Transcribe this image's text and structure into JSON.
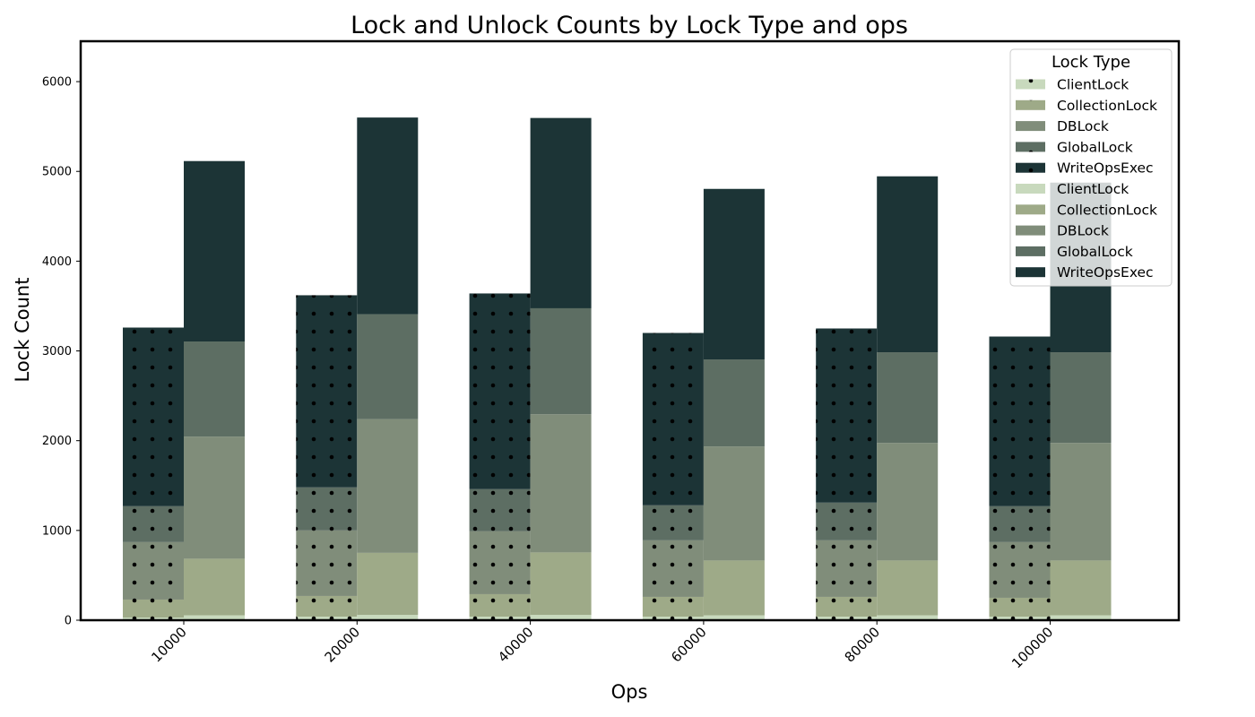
{
  "chart_data": {
    "type": "bar",
    "title": "Lock and Unlock Counts by Lock Type and ops",
    "xlabel": "Ops",
    "ylabel": "Lock Count",
    "categories": [
      "10000",
      "20000",
      "40000",
      "60000",
      "80000",
      "100000"
    ],
    "ylim": [
      0,
      6450
    ],
    "yticks": [
      0,
      1000,
      2000,
      3000,
      4000,
      5000,
      6000
    ],
    "grid": false,
    "legend_title": "Lock Type",
    "legend_position": "top-right",
    "lock_types": [
      "ClientLock",
      "CollectionLock",
      "DBLock",
      "GlobalLock",
      "WriteOpsExec"
    ],
    "colors": [
      "#c8d9bd",
      "#9eaa88",
      "#808d7a",
      "#5d6e63",
      "#1c3436"
    ],
    "groups": [
      {
        "pattern": "dots",
        "series": [
          {
            "name": "ClientLock",
            "values": [
              30,
              40,
              40,
              40,
              40,
              40
            ]
          },
          {
            "name": "CollectionLock",
            "values": [
              200,
              230,
              250,
              220,
              220,
              210
            ]
          },
          {
            "name": "DBLock",
            "values": [
              640,
              730,
              700,
              630,
              630,
              620
            ]
          },
          {
            "name": "GlobalLock",
            "values": [
              400,
              480,
              470,
              390,
              420,
              400
            ]
          },
          {
            "name": "WriteOpsExec",
            "values": [
              1990,
              2140,
              2180,
              1920,
              1940,
              1890
            ]
          }
        ]
      },
      {
        "pattern": "solid",
        "series": [
          {
            "name": "ClientLock",
            "values": [
              55,
              60,
              60,
              55,
              55,
              55
            ]
          },
          {
            "name": "CollectionLock",
            "values": [
              630,
              690,
              695,
              610,
              610,
              610
            ]
          },
          {
            "name": "DBLock",
            "values": [
              1360,
              1490,
              1540,
              1270,
              1310,
              1310
            ]
          },
          {
            "name": "GlobalLock",
            "values": [
              1060,
              1170,
              1180,
              970,
              1010,
              1010
            ]
          },
          {
            "name": "WriteOpsExec",
            "values": [
              2010,
              2190,
              2120,
              1900,
              1960,
              1890
            ]
          }
        ]
      }
    ]
  }
}
